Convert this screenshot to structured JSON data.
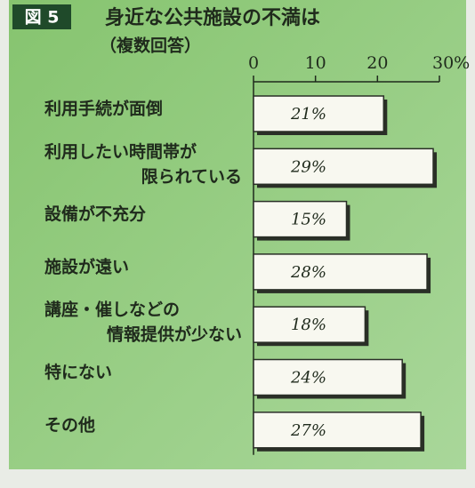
{
  "chart_data": {
    "type": "bar",
    "orientation": "horizontal",
    "badge": "図 5",
    "title": "身近な公共施設の不満は",
    "subtitle": "（複数回答）",
    "categories": [
      [
        "利用手続が面倒"
      ],
      [
        "利用したい時間帯が",
        "限られている"
      ],
      [
        "設備が不充分"
      ],
      [
        "施設が遠い"
      ],
      [
        "講座・催しなどの",
        "情報提供が少ない"
      ],
      [
        "特にない"
      ],
      [
        "その他"
      ]
    ],
    "values": [
      21,
      29,
      15,
      28,
      18,
      24,
      27
    ],
    "value_labels": [
      "21%",
      "29%",
      "15%",
      "28%",
      "18%",
      "24%",
      "27%"
    ],
    "color": "#f8f8f0",
    "xlim": [
      0,
      30
    ],
    "xticks": [
      0,
      10,
      20,
      {
        "value": 30,
        "label": "30%"
      }
    ]
  }
}
